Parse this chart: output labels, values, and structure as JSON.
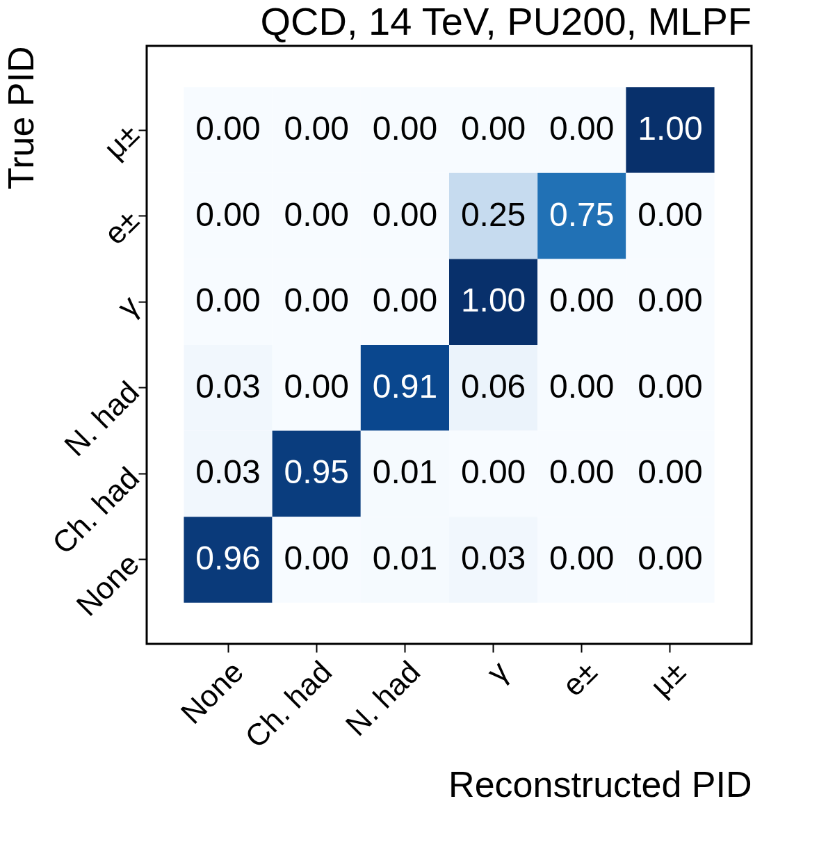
{
  "chart_data": {
    "type": "heatmap",
    "title": "QCD, 14 TeV, PU200, MLPF",
    "xlabel": "Reconstructed PID",
    "ylabel": "True PID",
    "categories": [
      "None",
      "Ch. had",
      "N. had",
      "γ",
      "e±",
      "μ±"
    ],
    "y_categories": [
      "μ±",
      "e±",
      "γ",
      "N. had",
      "Ch. had",
      "None"
    ],
    "cells": [
      [
        0.0,
        0.0,
        0.0,
        0.0,
        0.0,
        1.0
      ],
      [
        0.0,
        0.0,
        0.0,
        0.25,
        0.75,
        0.0
      ],
      [
        0.0,
        0.0,
        0.0,
        1.0,
        0.0,
        0.0
      ],
      [
        0.03,
        0.0,
        0.91,
        0.06,
        0.0,
        0.0
      ],
      [
        0.03,
        0.95,
        0.01,
        0.0,
        0.0,
        0.0
      ],
      [
        0.96,
        0.0,
        0.01,
        0.03,
        0.0,
        0.0
      ]
    ],
    "cell_labels": [
      [
        "0.00",
        "0.00",
        "0.00",
        "0.00",
        "0.00",
        "1.00"
      ],
      [
        "0.00",
        "0.00",
        "0.00",
        "0.25",
        "0.75",
        "0.00"
      ],
      [
        "0.00",
        "0.00",
        "0.00",
        "1.00",
        "0.00",
        "0.00"
      ],
      [
        "0.03",
        "0.00",
        "0.91",
        "0.06",
        "0.00",
        "0.00"
      ],
      [
        "0.03",
        "0.95",
        "0.01",
        "0.00",
        "0.00",
        "0.00"
      ],
      [
        "0.96",
        "0.00",
        "0.01",
        "0.03",
        "0.00",
        "0.00"
      ]
    ]
  }
}
